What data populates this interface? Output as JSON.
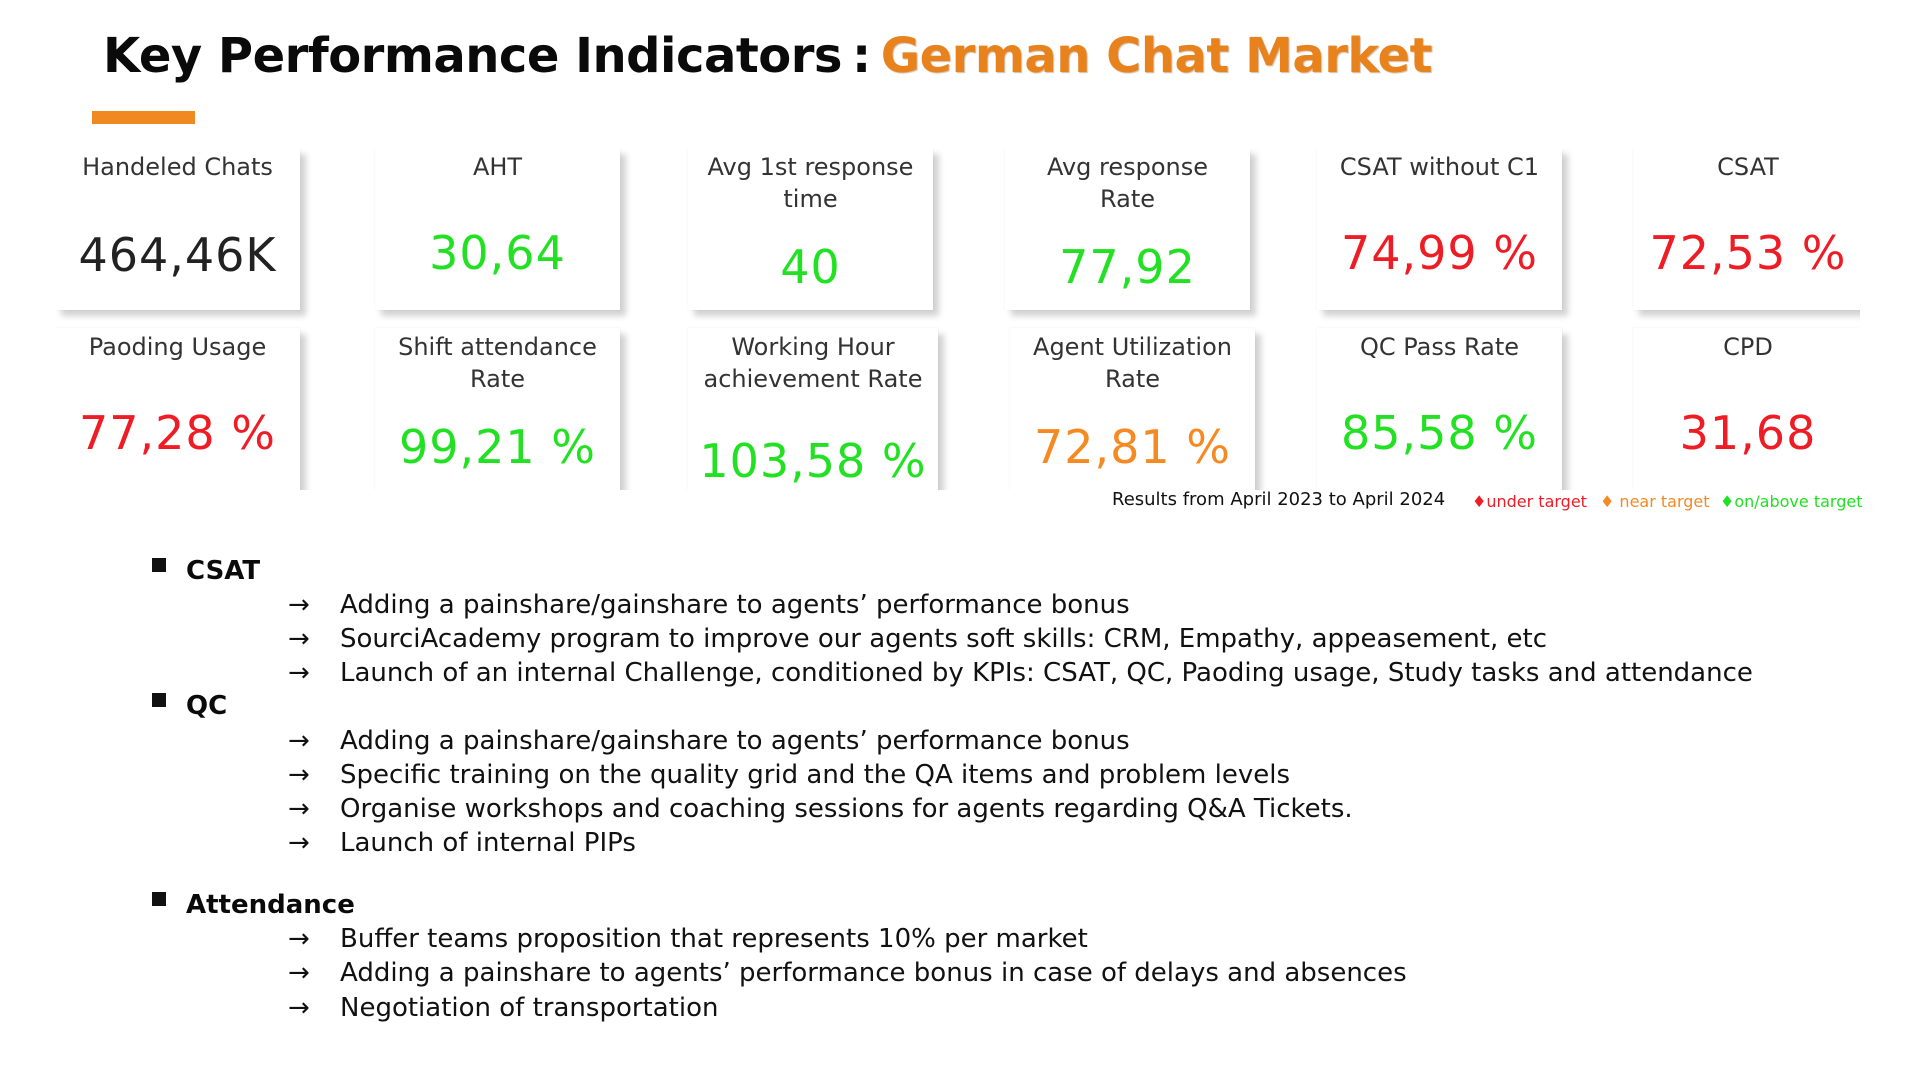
{
  "title": {
    "main": "Key Performance Indicators",
    "separator": ":",
    "accent": "German Chat Market"
  },
  "colors": {
    "accent": "#e8821c",
    "under_target": "#ee1c25",
    "near_target": "#f58a23",
    "on_above_target": "#22e022"
  },
  "kpis": [
    {
      "label": "Handeled Chats",
      "value": "464,46K",
      "status": "neutral"
    },
    {
      "label": "AHT",
      "value": "30,64",
      "status": "on_above_target"
    },
    {
      "label": "Avg 1st response time",
      "value": "40",
      "status": "on_above_target"
    },
    {
      "label": "Avg response Rate",
      "value": "77,92",
      "status": "on_above_target"
    },
    {
      "label": "CSAT without C1",
      "value": "74,99 %",
      "status": "under_target"
    },
    {
      "label": "CSAT",
      "value": "72,53 %",
      "status": "under_target"
    },
    {
      "label": "Paoding Usage",
      "value": "77,28 %",
      "status": "under_target"
    },
    {
      "label": "Shift attendance Rate",
      "value": "99,21 %",
      "status": "on_above_target"
    },
    {
      "label": "Working Hour achievement Rate",
      "value": "103,58 %",
      "status": "on_above_target"
    },
    {
      "label": "Agent Utilization Rate",
      "value": "72,81 %",
      "status": "near_target"
    },
    {
      "label": "QC Pass Rate",
      "value": "85,58 %",
      "status": "on_above_target"
    },
    {
      "label": "CPD",
      "value": "31,68",
      "status": "under_target"
    }
  ],
  "footnote": "Results from April 2023 to April 2024",
  "legend": {
    "under": "♦under target",
    "near": "♦ near target",
    "above": "♦on/above target"
  },
  "arrow_glyph": "→",
  "sections": [
    {
      "heading": "CSAT",
      "items": [
        "Adding a painshare/gainshare to agents’ performance bonus",
        "SourciAcademy program to improve our agents soft skills: CRM, Empathy, appeasement, etc",
        "Launch of an internal Challenge, conditioned by KPIs: CSAT, QC, Paoding usage, Study tasks and attendance"
      ]
    },
    {
      "heading": "QC",
      "items": [
        "Adding a painshare/gainshare to agents’ performance bonus",
        "Specific training on the quality grid and the QA items and problem levels",
        "Organise workshops and coaching sessions for agents regarding Q&A Tickets.",
        "Launch of internal PIPs"
      ]
    },
    {
      "heading": "Attendance",
      "items": [
        "Buffer teams proposition that represents 10% per market",
        "Adding a painshare to agents’ performance bonus in case of delays and absences",
        "Negotiation of transportation"
      ]
    }
  ]
}
